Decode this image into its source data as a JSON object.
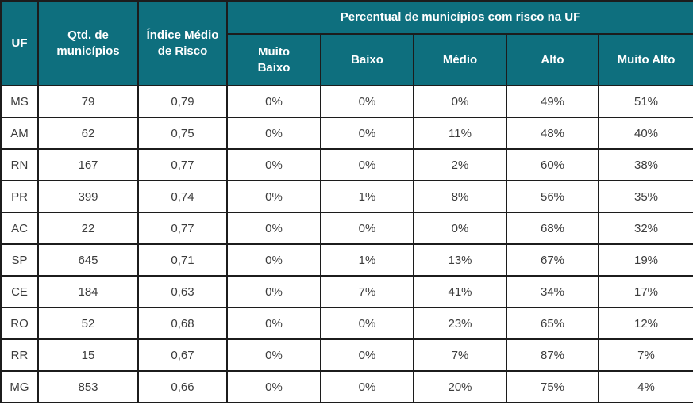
{
  "colors": {
    "header_bg": "#0e6f7e",
    "header_text": "#ffffff",
    "border": "#1c1c1c",
    "cell_text": "#3c3c3c"
  },
  "table": {
    "header": {
      "uf": "UF",
      "qtd": "Qtd. de municípios",
      "indice": "Índice Médio de Risco",
      "group": "Percentual de municípios com risco na UF",
      "sub": {
        "muito_baixo": "Muito\nBaixo",
        "baixo": "Baixo",
        "medio": "Médio",
        "alto": "Alto",
        "muito_alto": "Muito Alto"
      }
    },
    "rows": [
      {
        "uf": "MS",
        "qtd": "79",
        "indice": "0,79",
        "values": [
          "0%",
          "0%",
          "0%",
          "49%",
          "51%"
        ]
      },
      {
        "uf": "AM",
        "qtd": "62",
        "indice": "0,75",
        "values": [
          "0%",
          "0%",
          "11%",
          "48%",
          "40%"
        ]
      },
      {
        "uf": "RN",
        "qtd": "167",
        "indice": "0,77",
        "values": [
          "0%",
          "0%",
          "2%",
          "60%",
          "38%"
        ]
      },
      {
        "uf": "PR",
        "qtd": "399",
        "indice": "0,74",
        "values": [
          "0%",
          "1%",
          "8%",
          "56%",
          "35%"
        ]
      },
      {
        "uf": "AC",
        "qtd": "22",
        "indice": "0,77",
        "values": [
          "0%",
          "0%",
          "0%",
          "68%",
          "32%"
        ]
      },
      {
        "uf": "SP",
        "qtd": "645",
        "indice": "0,71",
        "values": [
          "0%",
          "1%",
          "13%",
          "67%",
          "19%"
        ]
      },
      {
        "uf": "CE",
        "qtd": "184",
        "indice": "0,63",
        "values": [
          "0%",
          "7%",
          "41%",
          "34%",
          "17%"
        ]
      },
      {
        "uf": "RO",
        "qtd": "52",
        "indice": "0,68",
        "values": [
          "0%",
          "0%",
          "23%",
          "65%",
          "12%"
        ]
      },
      {
        "uf": "RR",
        "qtd": "15",
        "indice": "0,67",
        "values": [
          "0%",
          "0%",
          "7%",
          "87%",
          "7%"
        ]
      },
      {
        "uf": "MG",
        "qtd": "853",
        "indice": "0,66",
        "values": [
          "0%",
          "0%",
          "20%",
          "75%",
          "4%"
        ]
      }
    ]
  }
}
